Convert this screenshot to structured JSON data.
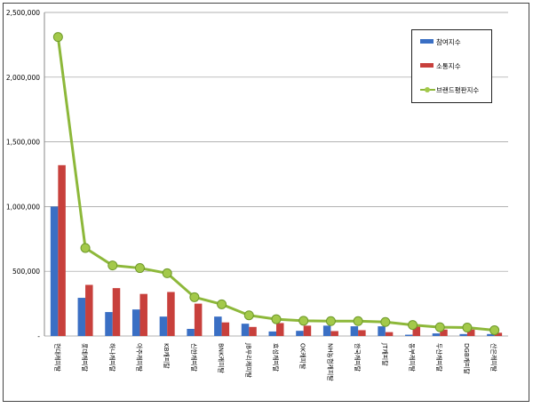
{
  "chart_data": {
    "type": "bar",
    "title": "",
    "xlabel": "",
    "ylabel": "",
    "ylim": [
      0,
      2500000
    ],
    "yticks": [
      "-",
      "500,000",
      "1,000,000",
      "1,500,000",
      "2,000,000",
      "2,500,000"
    ],
    "ytick_values": [
      0,
      500000,
      1000000,
      1500000,
      2000000,
      2500000
    ],
    "grid": true,
    "legend_position": "top-right",
    "categories": [
      "현대캐피탈",
      "롯데캐피탈",
      "하나캐피탈",
      "아주캐피탈",
      "KB캐피탈",
      "신한캐피탈",
      "BNK캐피탈",
      "JB우리캐피탈",
      "효성캐피탈",
      "OK캐피탈",
      "NH농협캐피탈",
      "한국캐피탈",
      "JT캐피탈",
      "동부캐피탈",
      "두산캐피탈",
      "DGB캐피탈",
      "산은캐피탈"
    ],
    "series": [
      {
        "name": "참여지수",
        "type": "bar",
        "color": "#3a6fc4",
        "values": [
          1000000,
          295000,
          185000,
          205000,
          150000,
          55000,
          150000,
          95000,
          35000,
          40000,
          80000,
          75000,
          75000,
          10000,
          20000,
          15000,
          15000
        ]
      },
      {
        "name": "소통지수",
        "type": "bar",
        "color": "#c8403c",
        "values": [
          1320000,
          395000,
          370000,
          325000,
          340000,
          250000,
          105000,
          70000,
          100000,
          80000,
          38000,
          45000,
          30000,
          80000,
          50000,
          50000,
          25000
        ]
      },
      {
        "name": "브랜드평판지수",
        "type": "line",
        "color": "#8db83a",
        "values": [
          2310000,
          680000,
          545000,
          525000,
          485000,
          300000,
          245000,
          160000,
          130000,
          118000,
          115000,
          115000,
          108000,
          85000,
          68000,
          65000,
          45000
        ]
      }
    ]
  }
}
